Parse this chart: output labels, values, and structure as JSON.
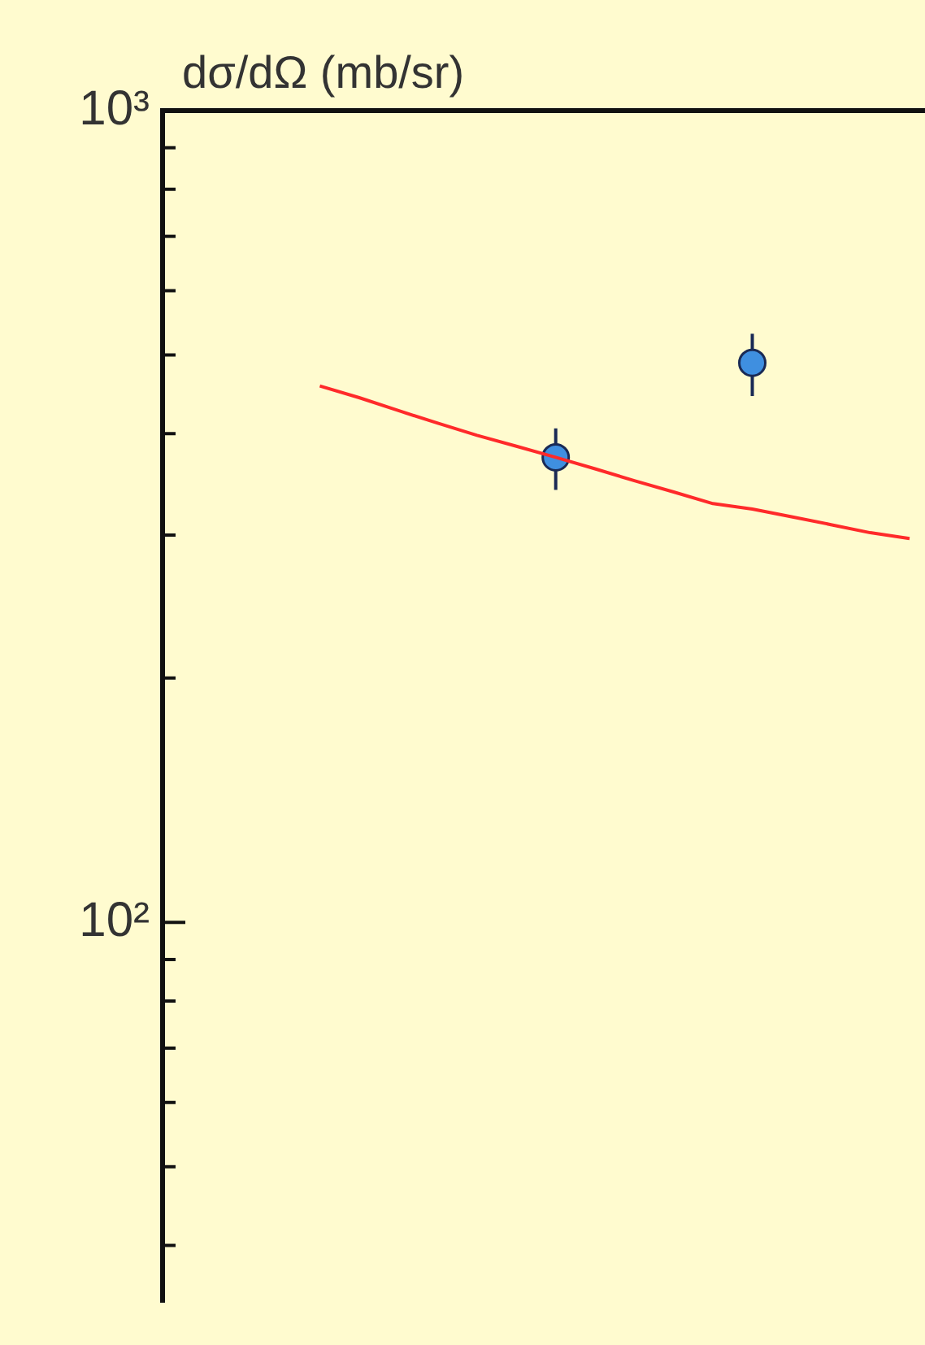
{
  "chart_data": {
    "type": "line",
    "ylabel": "dσ/dΩ (mb/sr)",
    "log": "y",
    "ylim": [
      34,
      1000
    ],
    "yticks": [
      {
        "value": 40,
        "label": null
      },
      {
        "value": 50,
        "label": null
      },
      {
        "value": 60,
        "label": null
      },
      {
        "value": 70,
        "label": null
      },
      {
        "value": 80,
        "label": null
      },
      {
        "value": 90,
        "label": null
      },
      {
        "value": 100,
        "label": "10²"
      },
      {
        "value": 200,
        "label": null
      },
      {
        "value": 300,
        "label": null
      },
      {
        "value": 400,
        "label": null
      },
      {
        "value": 500,
        "label": null
      },
      {
        "value": 600,
        "label": null
      },
      {
        "value": 700,
        "label": null
      },
      {
        "value": 800,
        "label": null
      },
      {
        "value": 900,
        "label": null
      },
      {
        "value": 1000,
        "label": "10³"
      }
    ],
    "categories": [
      null,
      null,
      null,
      null,
      null,
      null,
      null,
      null,
      null,
      null,
      null,
      null,
      null,
      null,
      null,
      null,
      null,
      null,
      null,
      null
    ],
    "tick_labels": "y",
    "grid": false,
    "legend": false,
    "series": [
      {
        "type": "line",
        "color": "#ff2a2a",
        "line_style": "solid",
        "marker": "none",
        "values": [
          null,
          null,
          null,
          null,
          458,
          443,
          427,
          412,
          398,
          386,
          374,
          362,
          350,
          339,
          328,
          323,
          316,
          309,
          302,
          297
        ]
      },
      {
        "type": "scatter",
        "color": "#3f8fe0",
        "marker": "circle",
        "values": [
          null,
          null,
          null,
          null,
          null,
          null,
          null,
          null,
          null,
          null,
          374,
          null,
          null,
          null,
          null,
          489,
          null,
          null,
          null,
          null
        ],
        "errors": [
          null,
          null,
          null,
          null,
          null,
          null,
          null,
          null,
          null,
          null,
          [
            341,
            406
          ],
          null,
          null,
          null,
          null,
          [
            445,
            531
          ],
          null,
          null,
          null,
          null
        ]
      }
    ]
  }
}
